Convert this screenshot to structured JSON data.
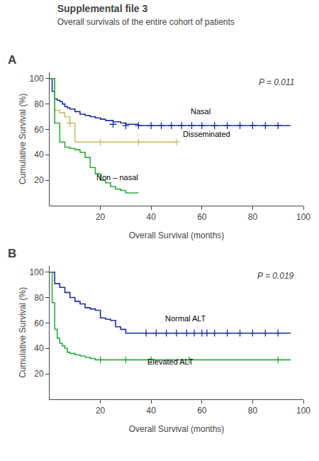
{
  "chart_data": [
    {
      "type": "line",
      "title": "Supplemental file 3",
      "subtitle": "Overall survivals of the entire cohort of patients",
      "panel_label": "A",
      "xlabel": "Overall Survival (months)",
      "ylabel": "Cumulative Survival (%)",
      "xlim": [
        0,
        100
      ],
      "ylim": [
        0,
        105
      ],
      "xticks": [
        20,
        40,
        60,
        80,
        100
      ],
      "yticks": [
        20,
        40,
        60,
        80,
        100
      ],
      "grid": false,
      "annotations": [
        {
          "text": "P = 0.011"
        }
      ],
      "series": [
        {
          "name": "Nasal",
          "color": "#1a2f9e",
          "line_style": "step",
          "marker": "cross",
          "x": [
            0,
            1,
            2,
            3,
            4,
            5,
            6,
            7,
            8,
            10,
            12,
            14,
            16,
            18,
            20,
            22,
            25,
            28,
            30,
            35,
            40,
            45,
            50,
            55,
            60,
            65,
            70,
            75,
            80,
            85,
            90,
            95
          ],
          "values": [
            100,
            90,
            84,
            83,
            82,
            80,
            78,
            77,
            76,
            74,
            72,
            71,
            70,
            69,
            68,
            67,
            66,
            65,
            64,
            63,
            63,
            63,
            63,
            63,
            63,
            63,
            63,
            63,
            63,
            63,
            63,
            63
          ],
          "censor_x": [
            25,
            30,
            35,
            40,
            44,
            48,
            52,
            56,
            60,
            65,
            70,
            75,
            80,
            85,
            90
          ],
          "censor_values": [
            64,
            63,
            63,
            63,
            63,
            63,
            63,
            63,
            63,
            63,
            63,
            63,
            63,
            63,
            63
          ],
          "label_x": 55,
          "label_y": 70
        },
        {
          "name": "Disseminated",
          "color": "#c8c070",
          "line_style": "step",
          "marker": "cross",
          "x": [
            0,
            2,
            4,
            6,
            8,
            10,
            12,
            20,
            35,
            50
          ],
          "values": [
            100,
            75,
            73,
            70,
            65,
            50,
            50,
            50,
            50,
            50
          ],
          "censor_x": [
            8,
            20,
            35,
            50
          ],
          "censor_values": [
            65,
            50,
            50,
            50
          ],
          "label_x": 52,
          "label_y": 52
        },
        {
          "name": "Non – nasal",
          "color": "#2eaa3e",
          "line_style": "step",
          "marker": "cross",
          "x": [
            0,
            2,
            4,
            6,
            8,
            10,
            12,
            14,
            16,
            18,
            20,
            22,
            24,
            26,
            28,
            30,
            32,
            35
          ],
          "values": [
            100,
            65,
            50,
            46,
            45,
            44,
            42,
            38,
            30,
            25,
            20,
            18,
            15,
            13,
            12,
            10,
            10,
            10
          ],
          "censor_x": [],
          "censor_values": [],
          "label_x": 18,
          "label_y": 18
        }
      ]
    },
    {
      "type": "line",
      "panel_label": "B",
      "xlabel": "Overall Survival (months)",
      "ylabel": "Cumulative Survival (%)",
      "xlim": [
        0,
        100
      ],
      "ylim": [
        0,
        105
      ],
      "xticks": [
        20,
        40,
        60,
        80,
        100
      ],
      "yticks": [
        20,
        40,
        60,
        80,
        100
      ],
      "grid": false,
      "annotations": [
        {
          "text": "P = 0.019"
        }
      ],
      "series": [
        {
          "name": "Normal ALT",
          "color": "#1a2f9e",
          "line_style": "step",
          "marker": "cross",
          "x": [
            0,
            2,
            4,
            6,
            8,
            10,
            12,
            14,
            16,
            18,
            20,
            22,
            24,
            26,
            28,
            30,
            35,
            40,
            45,
            50,
            55,
            60,
            65,
            70,
            75,
            80,
            85,
            90,
            95
          ],
          "values": [
            100,
            91,
            88,
            84,
            80,
            77,
            75,
            72,
            71,
            70,
            64,
            63,
            62,
            57,
            55,
            52,
            52,
            52,
            52,
            52,
            52,
            52,
            52,
            52,
            52,
            52,
            52,
            52,
            52
          ],
          "censor_x": [
            38,
            42,
            46,
            50,
            54,
            57,
            60,
            62,
            65,
            70,
            75,
            80,
            85,
            90
          ],
          "censor_values": [
            52,
            52,
            52,
            52,
            52,
            52,
            52,
            52,
            52,
            52,
            52,
            52,
            52,
            52
          ],
          "label_x": 45,
          "label_y": 59
        },
        {
          "name": "Elevated ALT",
          "color": "#2eaa3e",
          "line_style": "step",
          "marker": "cross",
          "x": [
            0,
            1,
            2,
            3,
            4,
            5,
            6,
            7,
            8,
            10,
            12,
            14,
            16,
            18,
            20,
            25,
            30,
            35,
            40,
            50,
            60,
            70,
            80,
            90,
            95
          ],
          "values": [
            100,
            76,
            55,
            48,
            44,
            42,
            40,
            37,
            36,
            35,
            34,
            33,
            32,
            31,
            31,
            31,
            31,
            31,
            31,
            31,
            31,
            31,
            31,
            31,
            31
          ],
          "censor_x": [
            20,
            30,
            40,
            55,
            90
          ],
          "censor_values": [
            31,
            31,
            31,
            31,
            31
          ],
          "label_x": 38,
          "label_y": 25
        }
      ]
    }
  ]
}
